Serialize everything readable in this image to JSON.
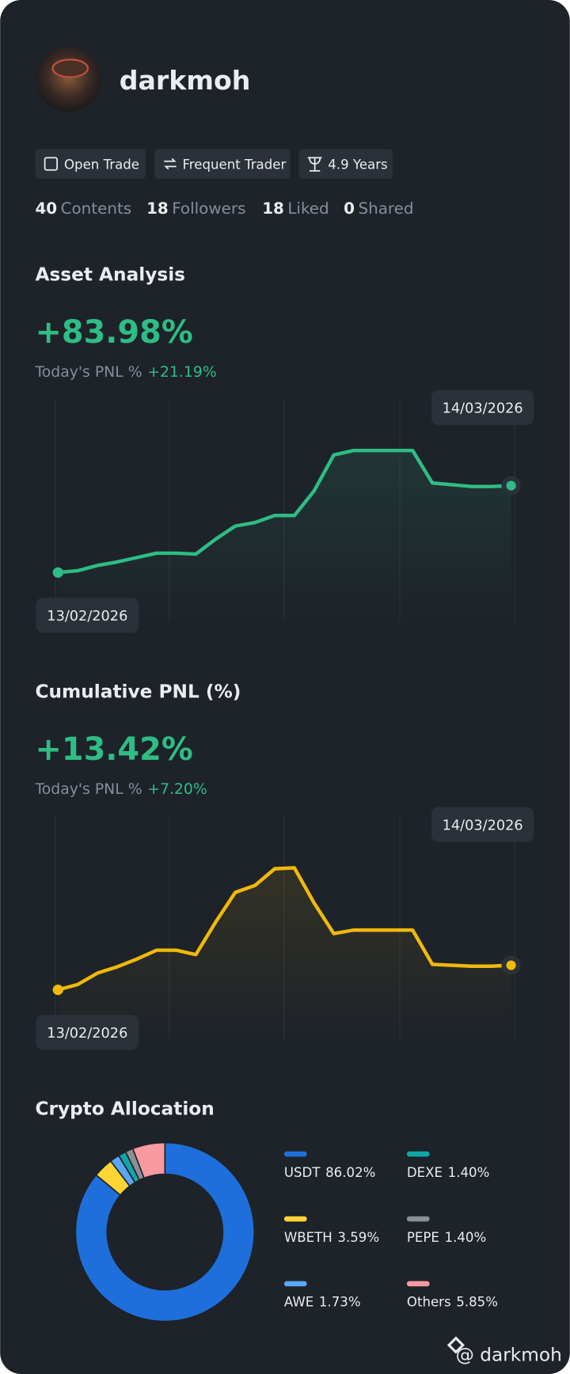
{
  "profile": {
    "username": "darkmoh",
    "badges": [
      "Open Trade",
      "Frequent Trader",
      "4.9 Years"
    ],
    "stats": [
      {
        "value": 40,
        "label": "Contents"
      },
      {
        "value": 18,
        "label": "Followers"
      },
      {
        "value": 18,
        "label": "Liked"
      },
      {
        "value": 0,
        "label": "Shared"
      }
    ]
  },
  "asset_analysis": {
    "title": "Asset Analysis",
    "headline": "+83.98%",
    "today_label": "Today's PNL %",
    "today_value": "+21.19%",
    "chart": {
      "type": "line",
      "color": "#2ebd85",
      "start_label": "13/02/2026",
      "end_label": "14/03/2026",
      "values": [
        0,
        1.7,
        6.8,
        10.2,
        14.4,
        18.7,
        18.7,
        17.8,
        32.2,
        44.9,
        48.3,
        55.1,
        55.1,
        78.9,
        113.6,
        117.9,
        117.9,
        117.9,
        117.9,
        86.5,
        84.8,
        83.1,
        83.1,
        83.98
      ],
      "ylim": [
        -48,
        168
      ]
    }
  },
  "cumulative_pnl": {
    "title": "Cumulative PNL (%)",
    "headline": "+13.42%",
    "today_label": "Today's PNL %",
    "today_value": "+7.20%",
    "chart": {
      "type": "line",
      "color": "#f0b90b",
      "start_label": "13/02/2026",
      "end_label": "14/03/2026",
      "values": [
        0,
        2.9,
        9.1,
        12.5,
        16.8,
        21.6,
        21.6,
        19.2,
        36.9,
        53.2,
        57.0,
        66.1,
        66.6,
        47.4,
        30.7,
        32.6,
        32.6,
        32.6,
        32.6,
        13.9,
        13.4,
        12.9,
        12.9,
        13.42
      ],
      "ylim": [
        -27,
        95
      ]
    }
  },
  "crypto_allocation": {
    "title": "Crypto Allocation",
    "chart": {
      "type": "donut",
      "categories": [
        "USDT",
        "WBETH",
        "AWE",
        "DEXE",
        "PEPE",
        "Others"
      ],
      "values": [
        86.02,
        3.59,
        1.73,
        1.4,
        1.4,
        5.85
      ],
      "value_labels": [
        "86.02%",
        "3.59%",
        "1.73%",
        "1.40%",
        "1.40%",
        "5.85%"
      ],
      "colors": [
        "#1e6fdc",
        "#fcd535",
        "#5aa7f5",
        "#11a5a5",
        "#8a8f98",
        "#f89aa0"
      ]
    }
  },
  "watermark": "@ darkmoh"
}
